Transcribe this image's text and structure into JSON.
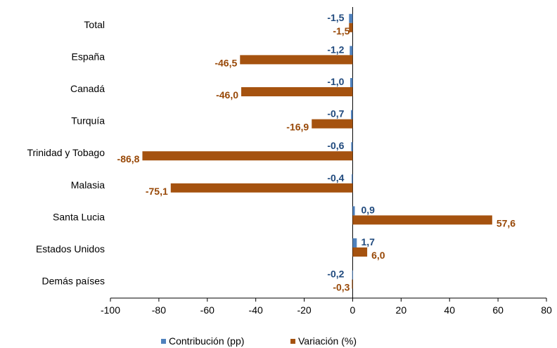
{
  "chart_data": {
    "type": "bar",
    "orientation": "horizontal",
    "categories": [
      "Total",
      "España",
      "Canadá",
      "Turquía",
      "Trinidad y Tobago",
      "Malasia",
      "Santa Lucia",
      "Estados Unidos",
      "Demás países"
    ],
    "series": [
      {
        "name": "Contribución (pp)",
        "color": "#4f81bd",
        "values": [
          -1.5,
          -1.2,
          -1.0,
          -0.7,
          -0.6,
          -0.4,
          0.9,
          1.7,
          -0.2
        ],
        "labels": [
          "-1,5",
          "-1,2",
          "-1,0",
          "-0,7",
          "-0,6",
          "-0,4",
          "0,9",
          "1,7",
          "-0,2"
        ]
      },
      {
        "name": "Variación (%)",
        "color": "#a5520f",
        "values": [
          -1.5,
          -46.5,
          -46.0,
          -16.9,
          -86.8,
          -75.1,
          57.6,
          6.0,
          -0.3
        ],
        "labels": [
          "-1,5",
          "-46,5",
          "-46,0",
          "-16,9",
          "-86,8",
          "-75,1",
          "57,6",
          "6,0",
          "-0,3"
        ]
      }
    ],
    "xlim": [
      -100,
      80
    ],
    "xticks": [
      -100,
      -80,
      -60,
      -40,
      -20,
      0,
      20,
      40,
      60,
      80
    ],
    "label_colors": {
      "contribucion": "#1f497d",
      "variacion": "#984807"
    },
    "grid": false,
    "legend": "bottom"
  }
}
